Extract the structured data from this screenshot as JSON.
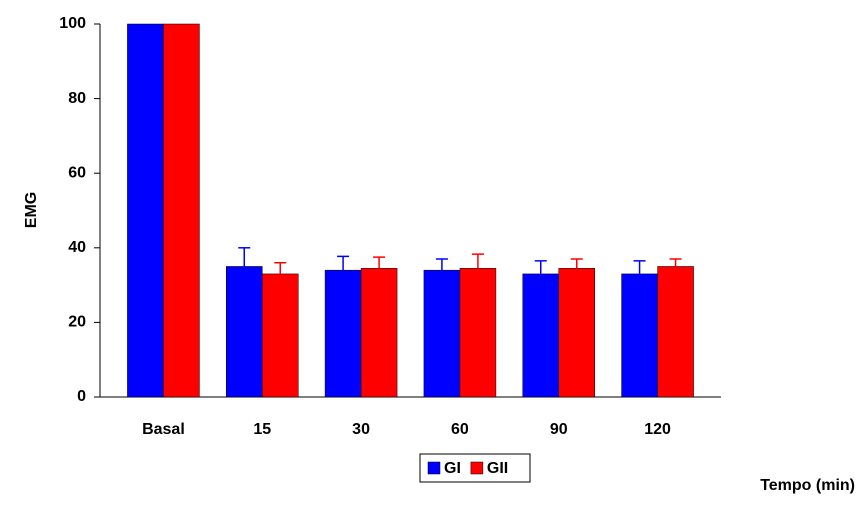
{
  "chart_data": {
    "type": "bar",
    "x_label": "Tempo (min)",
    "y_label": "EMG",
    "categories": [
      "Basal",
      "15",
      "30",
      "60",
      "90",
      "120"
    ],
    "series": [
      {
        "name": "GI",
        "color": "#0000ff",
        "values": [
          100,
          35,
          34,
          34,
          33,
          33
        ],
        "errors": [
          0,
          5,
          3.7,
          3,
          3.5,
          3.5
        ]
      },
      {
        "name": "GII",
        "color": "#ff0000",
        "values": [
          100,
          33,
          34.5,
          34.5,
          34.5,
          35
        ],
        "errors": [
          0,
          3,
          3,
          3.8,
          2.5,
          2
        ]
      }
    ],
    "ylim": [
      0,
      100
    ],
    "yticks": [
      0,
      20,
      40,
      60,
      80,
      100
    ],
    "grid": false,
    "legend": "bottom"
  }
}
